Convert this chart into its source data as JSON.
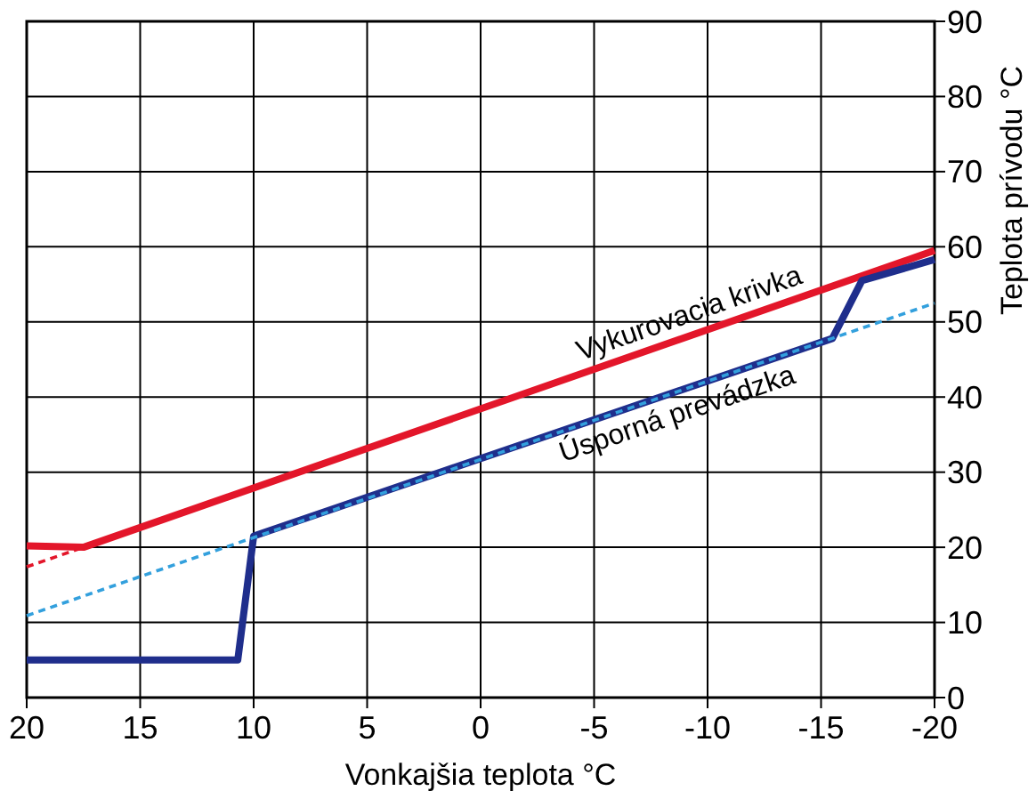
{
  "chart_data": {
    "type": "line",
    "xlabel": "Vonkajšia teplota °C",
    "ylabel": "Teplota prívodu °C",
    "xlim": [
      20,
      -20
    ],
    "ylim": [
      0,
      90
    ],
    "xticks": [
      20,
      15,
      10,
      5,
      0,
      -5,
      -10,
      -15,
      -20
    ],
    "yticks": [
      0,
      10,
      20,
      30,
      40,
      50,
      60,
      70,
      80,
      90
    ],
    "grid": true,
    "series": [
      {
        "color": "#e3162a",
        "line_style": "dashed",
        "x": [
          20,
          17.5
        ],
        "values": [
          17.4,
          20
        ]
      },
      {
        "name": "Vykurovacia krivka",
        "color": "#e3162a",
        "line_style": "solid",
        "x": [
          20,
          17.5,
          -20
        ],
        "values": [
          20.2,
          20,
          59.5
        ]
      },
      {
        "name": "Úsporná prevádzka",
        "color": "#1f2e8c",
        "line_style": "solid",
        "x": [
          20,
          10.7,
          10,
          -15.5,
          -16.8,
          -20
        ],
        "values": [
          5,
          5,
          21.5,
          47.8,
          55.5,
          58.3
        ]
      },
      {
        "color": "#33a0dd",
        "line_style": "dashed",
        "x": [
          20,
          -20
        ],
        "values": [
          10.9,
          52.5
        ]
      }
    ]
  }
}
